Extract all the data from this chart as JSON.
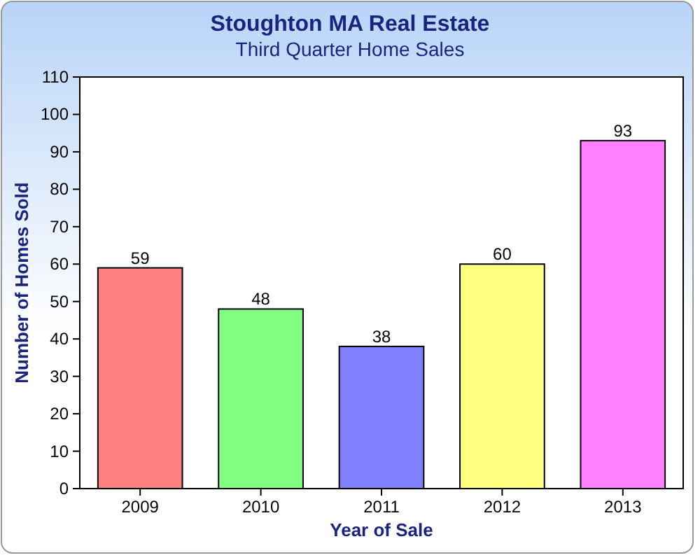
{
  "chart_data": {
    "type": "bar",
    "title": "Stoughton MA Real Estate",
    "subtitle": "Third Quarter Home Sales",
    "xlabel": "Year of Sale",
    "ylabel": "Number of Homes Sold",
    "categories": [
      "2009",
      "2010",
      "2011",
      "2012",
      "2013"
    ],
    "values": [
      59,
      48,
      38,
      60,
      93
    ],
    "colors": [
      "#ff8080",
      "#80ff80",
      "#8080ff",
      "#ffff80",
      "#ff80ff"
    ],
    "ylim": [
      0,
      110
    ],
    "yticks": [
      0,
      10,
      20,
      30,
      40,
      50,
      60,
      70,
      80,
      90,
      100,
      110
    ],
    "data_labels": true
  }
}
